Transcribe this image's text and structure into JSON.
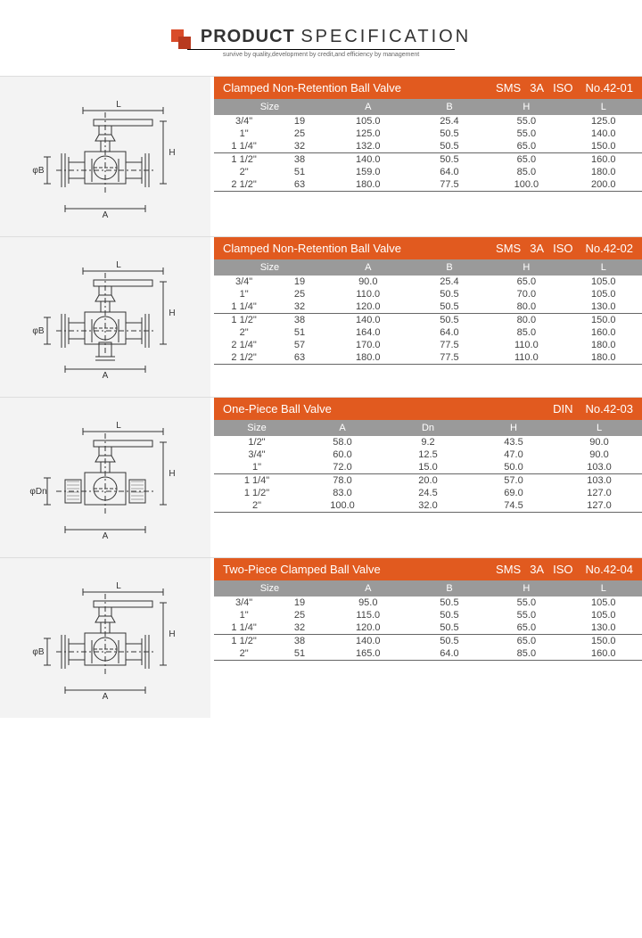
{
  "header": {
    "title_bold": "PRODUCT",
    "title_thin": "SPECIFICATION",
    "subtitle": "survive by quality,development by credit,and efficiency by management",
    "logo_color1": "#d94c2a",
    "logo_color2": "#b83a1f"
  },
  "colors": {
    "title_bar_bg": "#e15a1f",
    "title_bar_text": "#ffffff",
    "header_row_bg": "#9a9a9a",
    "header_row_text": "#ffffff",
    "diagram_bg": "#f3f3f3",
    "text": "#444444",
    "divider": "#666666"
  },
  "sections": [
    {
      "name": "Clamped Non-Retention Ball Valve",
      "standards": [
        "SMS",
        "3A",
        "ISO"
      ],
      "product_no": "No.42-01",
      "layout": "c6",
      "columns": [
        "Size",
        "A",
        "B",
        "H",
        "L"
      ],
      "diagram_labels": {
        "top": "L",
        "right": "H",
        "left": "φB",
        "bottom": "A"
      },
      "diagram_type": "clamped_noport",
      "rows": [
        {
          "cells": [
            "3/4\"",
            "19",
            "105.0",
            "25.4",
            "55.0",
            "125.0"
          ],
          "divider": false
        },
        {
          "cells": [
            "1\"",
            "25",
            "125.0",
            "50.5",
            "55.0",
            "140.0"
          ],
          "divider": false
        },
        {
          "cells": [
            "1 1/4\"",
            "32",
            "132.0",
            "50.5",
            "65.0",
            "150.0"
          ],
          "divider": false
        },
        {
          "cells": [
            "1 1/2\"",
            "38",
            "140.0",
            "50.5",
            "65.0",
            "160.0"
          ],
          "divider": true
        },
        {
          "cells": [
            "2\"",
            "51",
            "159.0",
            "64.0",
            "85.0",
            "180.0"
          ],
          "divider": false
        },
        {
          "cells": [
            "2 1/2\"",
            "63",
            "180.0",
            "77.5",
            "100.0",
            "200.0"
          ],
          "divider": false
        }
      ]
    },
    {
      "name": "Clamped Non-Retention Ball Valve",
      "standards": [
        "SMS",
        "3A",
        "ISO"
      ],
      "product_no": "No.42-02",
      "layout": "c6",
      "columns": [
        "Size",
        "A",
        "B",
        "H",
        "L"
      ],
      "diagram_labels": {
        "top": "L",
        "right": "H",
        "left": "φB",
        "bottom": "A"
      },
      "diagram_type": "clamped_bottomport",
      "rows": [
        {
          "cells": [
            "3/4\"",
            "19",
            "90.0",
            "25.4",
            "65.0",
            "105.0"
          ],
          "divider": false
        },
        {
          "cells": [
            "1\"",
            "25",
            "110.0",
            "50.5",
            "70.0",
            "105.0"
          ],
          "divider": false
        },
        {
          "cells": [
            "1 1/4\"",
            "32",
            "120.0",
            "50.5",
            "80.0",
            "130.0"
          ],
          "divider": false
        },
        {
          "cells": [
            "1 1/2\"",
            "38",
            "140.0",
            "50.5",
            "80.0",
            "150.0"
          ],
          "divider": true
        },
        {
          "cells": [
            "2\"",
            "51",
            "164.0",
            "64.0",
            "85.0",
            "160.0"
          ],
          "divider": false
        },
        {
          "cells": [
            "2 1/4\"",
            "57",
            "170.0",
            "77.5",
            "110.0",
            "180.0"
          ],
          "divider": false
        },
        {
          "cells": [
            "2 1/2\"",
            "63",
            "180.0",
            "77.5",
            "110.0",
            "180.0"
          ],
          "divider": false
        }
      ]
    },
    {
      "name": "One-Piece Ball Valve",
      "standards": [
        "DIN"
      ],
      "product_no": "No.42-03",
      "layout": "c5",
      "columns": [
        "Size",
        "A",
        "Dn",
        "H",
        "L"
      ],
      "diagram_labels": {
        "top": "L",
        "right": "H",
        "left": "φDn",
        "bottom": "A"
      },
      "diagram_type": "onepiece",
      "rows": [
        {
          "cells": [
            "1/2\"",
            "58.0",
            "9.2",
            "43.5",
            "90.0"
          ],
          "divider": false
        },
        {
          "cells": [
            "3/4\"",
            "60.0",
            "12.5",
            "47.0",
            "90.0"
          ],
          "divider": false
        },
        {
          "cells": [
            "1\"",
            "72.0",
            "15.0",
            "50.0",
            "103.0"
          ],
          "divider": false
        },
        {
          "cells": [
            "1 1/4\"",
            "78.0",
            "20.0",
            "57.0",
            "103.0"
          ],
          "divider": true
        },
        {
          "cells": [
            "1 1/2\"",
            "83.0",
            "24.5",
            "69.0",
            "127.0"
          ],
          "divider": false
        },
        {
          "cells": [
            "2\"",
            "100.0",
            "32.0",
            "74.5",
            "127.0"
          ],
          "divider": false
        }
      ]
    },
    {
      "name": "Two-Piece Clamped Ball Valve",
      "standards": [
        "SMS",
        "3A",
        "ISO"
      ],
      "product_no": "No.42-04",
      "layout": "c6",
      "columns": [
        "Size",
        "A",
        "B",
        "H",
        "L"
      ],
      "diagram_labels": {
        "top": "L",
        "right": "H",
        "left": "φB",
        "bottom": "A"
      },
      "diagram_type": "clamped_twopiece",
      "rows": [
        {
          "cells": [
            "3/4\"",
            "19",
            "95.0",
            "50.5",
            "55.0",
            "105.0"
          ],
          "divider": false
        },
        {
          "cells": [
            "1\"",
            "25",
            "115.0",
            "50.5",
            "55.0",
            "105.0"
          ],
          "divider": false
        },
        {
          "cells": [
            "1 1/4\"",
            "32",
            "120.0",
            "50.5",
            "65.0",
            "130.0"
          ],
          "divider": false
        },
        {
          "cells": [
            "1 1/2\"",
            "38",
            "140.0",
            "50.5",
            "65.0",
            "150.0"
          ],
          "divider": true
        },
        {
          "cells": [
            "2\"",
            "51",
            "165.0",
            "64.0",
            "85.0",
            "160.0"
          ],
          "divider": false
        }
      ]
    }
  ]
}
